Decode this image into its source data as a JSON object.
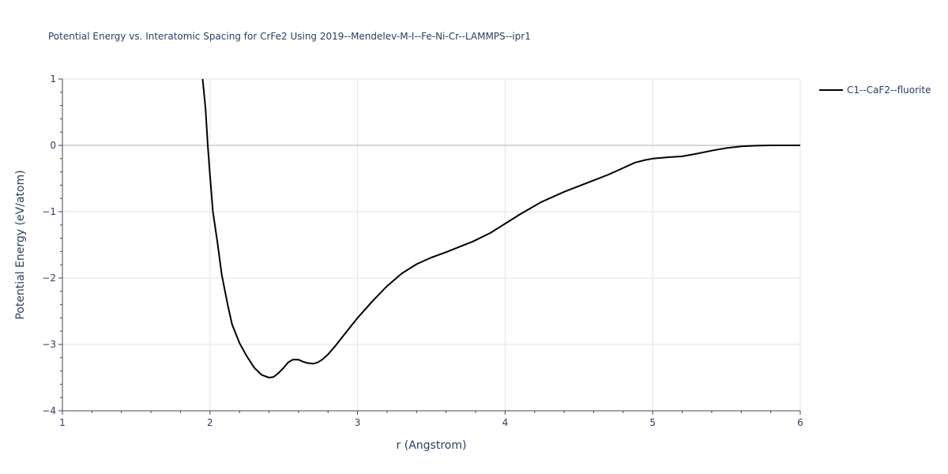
{
  "chart_data": {
    "type": "line",
    "title": "Potential Energy vs. Interatomic Spacing for CrFe2 Using 2019--Mendelev-M-I--Fe-Ni-Cr--LAMMPS--ipr1",
    "xlabel": "r (Angstrom)",
    "ylabel": "Potential Energy (eV/atom)",
    "xlim": [
      1,
      6
    ],
    "ylim": [
      -4,
      1
    ],
    "xticks": [
      1,
      2,
      3,
      4,
      5,
      6
    ],
    "xtick_labels": [
      "1",
      "2",
      "3",
      "4",
      "5",
      "6"
    ],
    "yticks": [
      1,
      0,
      -1,
      -2,
      -3,
      -4
    ],
    "ytick_labels": [
      "1",
      "0",
      "−1",
      "−2",
      "−3",
      "−4"
    ],
    "grid": true,
    "legend_position": "top-right",
    "series": [
      {
        "name": "C1--CaF2--fluorite",
        "color": "#000000",
        "x": [
          1.95,
          1.97,
          1.985,
          2.0,
          2.02,
          2.05,
          2.08,
          2.12,
          2.15,
          2.2,
          2.25,
          2.3,
          2.35,
          2.4,
          2.43,
          2.46,
          2.5,
          2.53,
          2.56,
          2.6,
          2.63,
          2.66,
          2.7,
          2.73,
          2.76,
          2.8,
          2.85,
          2.9,
          3.0,
          3.1,
          3.2,
          3.3,
          3.4,
          3.5,
          3.6,
          3.7,
          3.78,
          3.9,
          4.0,
          4.1,
          4.24,
          4.4,
          4.55,
          4.7,
          4.8,
          4.88,
          4.95,
          5.0,
          5.1,
          5.2,
          5.3,
          5.4,
          5.5,
          5.6,
          5.7,
          5.8,
          5.9,
          6.0
        ],
        "y": [
          1.0,
          0.55,
          0.0,
          -0.45,
          -1.0,
          -1.45,
          -1.95,
          -2.4,
          -2.7,
          -2.98,
          -3.18,
          -3.35,
          -3.46,
          -3.5,
          -3.49,
          -3.44,
          -3.35,
          -3.27,
          -3.23,
          -3.23,
          -3.26,
          -3.28,
          -3.29,
          -3.27,
          -3.23,
          -3.15,
          -3.02,
          -2.88,
          -2.6,
          -2.35,
          -2.12,
          -1.93,
          -1.79,
          -1.69,
          -1.61,
          -1.52,
          -1.45,
          -1.32,
          -1.18,
          -1.04,
          -0.86,
          -0.7,
          -0.57,
          -0.44,
          -0.34,
          -0.26,
          -0.22,
          -0.2,
          -0.18,
          -0.165,
          -0.125,
          -0.08,
          -0.04,
          -0.015,
          -0.005,
          0.0,
          0.0,
          0.0
        ]
      }
    ]
  }
}
